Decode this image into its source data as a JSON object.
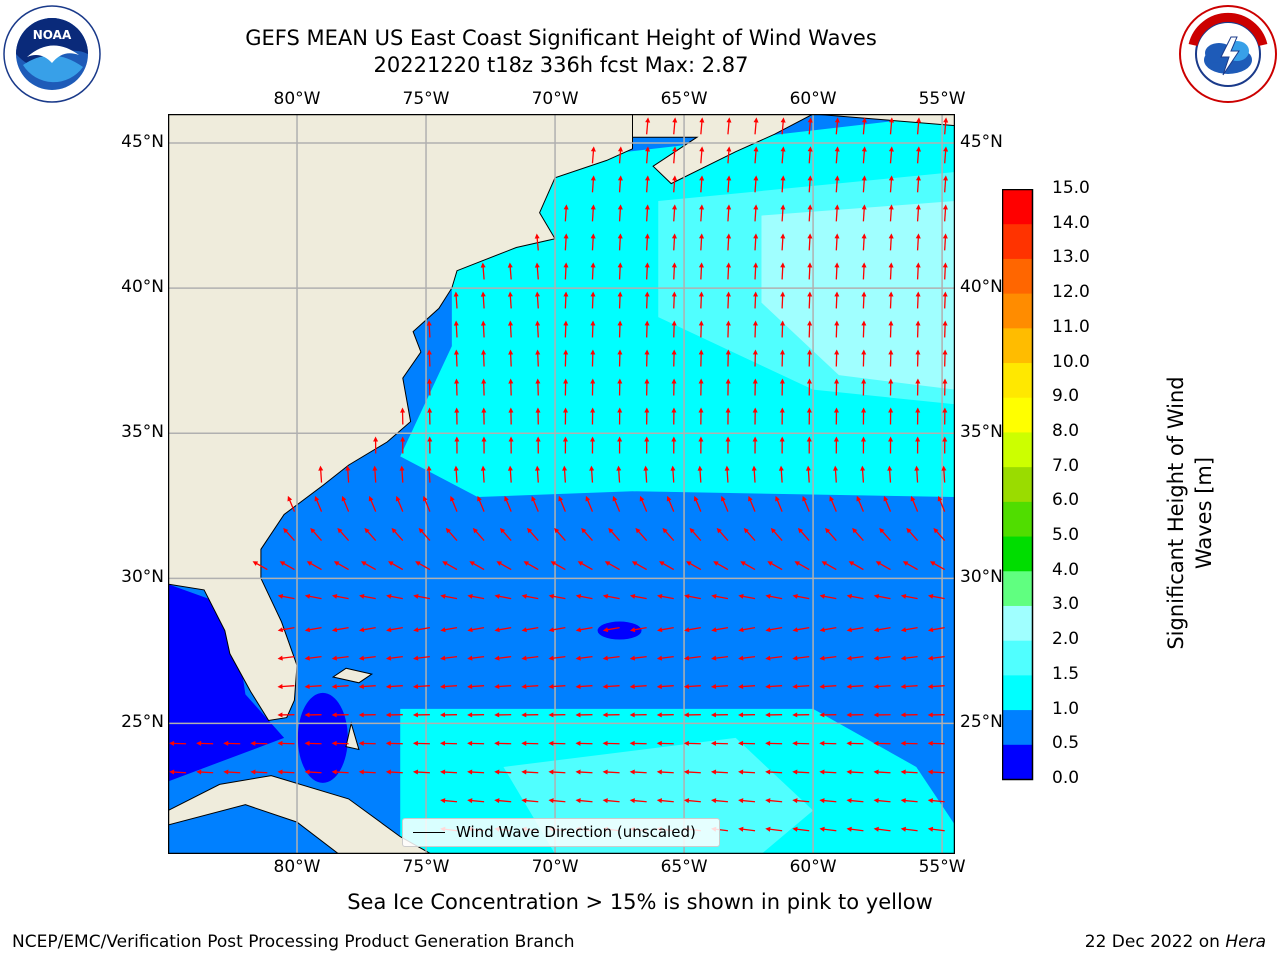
{
  "title_line1": "GEFS MEAN US East Coast Significant Height of Wind Waves",
  "title_line2": "20221220 t18z 336h fcst   Max: 2.87",
  "logos": {
    "left": "noaa-logo",
    "right": "nws-logo"
  },
  "map": {
    "lon_ticks": [
      "80°W",
      "75°W",
      "70°W",
      "65°W",
      "60°W",
      "55°W"
    ],
    "lat_ticks": [
      "45°N",
      "40°N",
      "35°N",
      "30°N",
      "25°N"
    ],
    "extent": {
      "lon": [
        -85,
        -54.5
      ],
      "lat": [
        20.5,
        46
      ]
    },
    "colors": {
      "land": "#efecdc",
      "coast": "#000000",
      "grid": "#b0b0b0",
      "arrow": "#ff0000"
    }
  },
  "legend_text": "Wind Wave Direction (unscaled)",
  "colorbar": {
    "label": "Significant Height of Wind Waves [m]",
    "ticks": [
      "0.0",
      "0.5",
      "1.0",
      "1.5",
      "2.0",
      "3.0",
      "4.0",
      "5.0",
      "6.0",
      "7.0",
      "8.0",
      "9.0",
      "10.0",
      "11.0",
      "12.0",
      "13.0",
      "14.0",
      "15.0"
    ],
    "colors": [
      "#0000ff",
      "#0080ff",
      "#00ffff",
      "#50ffff",
      "#a0ffff",
      "#60ff80",
      "#00dd00",
      "#50dd00",
      "#9adc00",
      "#ccff00",
      "#ffff00",
      "#ffe800",
      "#ffbc00",
      "#ff8c00",
      "#ff6600",
      "#ff3300",
      "#ff0000"
    ]
  },
  "sea_ice_note": "Sea Ice Concentration > 15% is shown in pink to yellow",
  "footer_left": "NCEP/EMC/Verification Post Processing Product Generation Branch",
  "footer_right_date": "22 Dec 2022 on ",
  "footer_right_host": "Hera"
}
